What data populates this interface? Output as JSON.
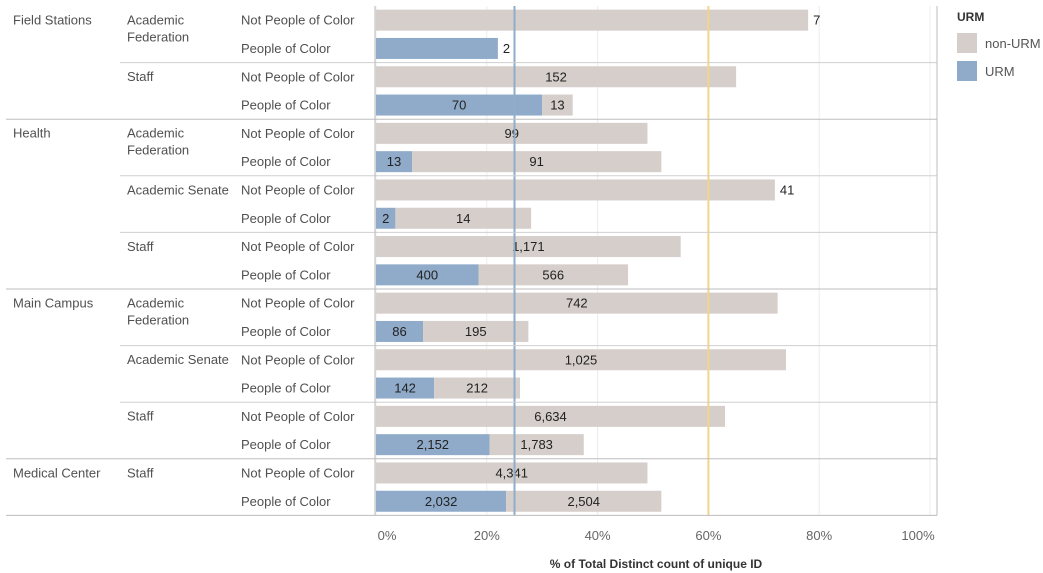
{
  "chart_data": {
    "type": "bar",
    "orientation": "horizontal",
    "stacked": true,
    "xlabel": "% of Total Distinct count of unique ID",
    "xlim": [
      0,
      100
    ],
    "x_ticks": [
      "0%",
      "20%",
      "40%",
      "60%",
      "80%",
      "100%"
    ],
    "reference_lines": [
      {
        "value": 25,
        "color": "#8fadc8"
      },
      {
        "value": 60,
        "color": "#f2d48a"
      }
    ],
    "legend": {
      "title": "URM",
      "position": "right",
      "items": [
        {
          "label": "non-URM",
          "color": "#d5ceca"
        },
        {
          "label": "URM",
          "color": "#8fabc9"
        }
      ]
    },
    "groups": [
      {
        "name": "Field Stations",
        "subgroups": [
          {
            "name": "Academic Federation",
            "rows": [
              {
                "label": "Not People of Color",
                "urm_pct": 0,
                "nonurm_pct": 78,
                "urm_count": "",
                "nonurm_count": "7"
              },
              {
                "label": "People of Color",
                "urm_pct": 22,
                "nonurm_pct": 0,
                "urm_count": "2",
                "nonurm_count": ""
              }
            ]
          },
          {
            "name": "Staff",
            "rows": [
              {
                "label": "Not People of Color",
                "urm_pct": 0,
                "nonurm_pct": 65,
                "urm_count": "",
                "nonurm_count": "152"
              },
              {
                "label": "People of Color",
                "urm_pct": 30,
                "nonurm_pct": 5.5,
                "urm_count": "70",
                "nonurm_count": "13"
              }
            ]
          }
        ]
      },
      {
        "name": "Health",
        "subgroups": [
          {
            "name": "Academic Federation",
            "rows": [
              {
                "label": "Not People of Color",
                "urm_pct": 0,
                "nonurm_pct": 49,
                "urm_count": "",
                "nonurm_count": "99"
              },
              {
                "label": "People of Color",
                "urm_pct": 6.5,
                "nonurm_pct": 45,
                "urm_count": "13",
                "nonurm_count": "91"
              }
            ]
          },
          {
            "name": "Academic Senate",
            "rows": [
              {
                "label": "Not People of Color",
                "urm_pct": 0,
                "nonurm_pct": 72,
                "urm_count": "",
                "nonurm_count": "41"
              },
              {
                "label": "People of Color",
                "urm_pct": 3.5,
                "nonurm_pct": 24.5,
                "urm_count": "2",
                "nonurm_count": "14"
              }
            ]
          },
          {
            "name": "Staff",
            "rows": [
              {
                "label": "Not People of Color",
                "urm_pct": 0,
                "nonurm_pct": 55,
                "urm_count": "",
                "nonurm_count": "1,171"
              },
              {
                "label": "People of Color",
                "urm_pct": 18.5,
                "nonurm_pct": 27,
                "urm_count": "400",
                "nonurm_count": "566"
              }
            ]
          }
        ]
      },
      {
        "name": "Main Campus",
        "subgroups": [
          {
            "name": "Academic Federation",
            "rows": [
              {
                "label": "Not People of Color",
                "urm_pct": 0,
                "nonurm_pct": 72.5,
                "urm_count": "",
                "nonurm_count": "742"
              },
              {
                "label": "People of Color",
                "urm_pct": 8.5,
                "nonurm_pct": 19,
                "urm_count": "86",
                "nonurm_count": "195"
              }
            ]
          },
          {
            "name": "Academic Senate",
            "rows": [
              {
                "label": "Not People of Color",
                "urm_pct": 0,
                "nonurm_pct": 74,
                "urm_count": "",
                "nonurm_count": "1,025"
              },
              {
                "label": "People of Color",
                "urm_pct": 10.5,
                "nonurm_pct": 15.5,
                "urm_count": "142",
                "nonurm_count": "212"
              }
            ]
          },
          {
            "name": "Staff",
            "rows": [
              {
                "label": "Not People of Color",
                "urm_pct": 0,
                "nonurm_pct": 63,
                "urm_count": "",
                "nonurm_count": "6,634"
              },
              {
                "label": "People of Color",
                "urm_pct": 20.5,
                "nonurm_pct": 17,
                "urm_count": "2,152",
                "nonurm_count": "1,783"
              }
            ]
          }
        ]
      },
      {
        "name": "Medical Center",
        "subgroups": [
          {
            "name": "Staff",
            "rows": [
              {
                "label": "Not People of Color",
                "urm_pct": 0,
                "nonurm_pct": 49,
                "urm_count": "",
                "nonurm_count": "4,341"
              },
              {
                "label": "People of Color",
                "urm_pct": 23.5,
                "nonurm_pct": 28,
                "urm_count": "2,032",
                "nonurm_count": "2,504"
              }
            ]
          }
        ]
      }
    ]
  }
}
